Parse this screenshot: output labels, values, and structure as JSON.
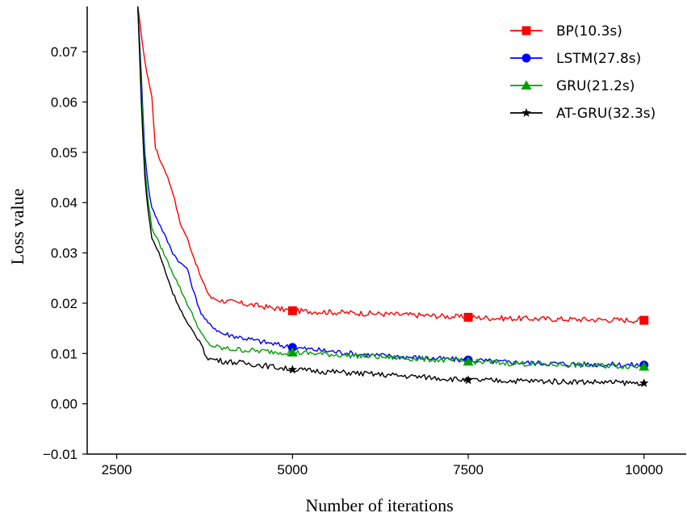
{
  "chart_data": {
    "type": "line",
    "xlabel": "Number of iterations",
    "ylabel": "Loss value",
    "xlim": [
      2080,
      10600
    ],
    "ylim": [
      -0.01,
      0.079
    ],
    "x_ticks": [
      2500,
      5000,
      7500,
      10000
    ],
    "x_tick_labels": [
      "2500",
      "5000",
      "7500",
      "10000"
    ],
    "y_ticks": [
      -0.01,
      0.0,
      0.01,
      0.02,
      0.03,
      0.04,
      0.05,
      0.06,
      0.07
    ],
    "y_tick_labels": [
      "−0.01",
      "0.00",
      "0.01",
      "0.02",
      "0.03",
      "0.04",
      "0.05",
      "0.06",
      "0.07"
    ],
    "grid": false,
    "legend_position": "top-right",
    "series": [
      {
        "name": "BP(10.3s)",
        "color": "#ff0000",
        "marker": "square",
        "x": [
          2800,
          2900,
          3000,
          3050,
          3100,
          3200,
          3300,
          3400,
          3500,
          3600,
          3700,
          3800,
          3850,
          4000,
          4500,
          5000,
          6000,
          7000,
          7500,
          8000,
          9000,
          10000
        ],
        "y": [
          0.079,
          0.068,
          0.061,
          0.051,
          0.049,
          0.046,
          0.042,
          0.036,
          0.033,
          0.029,
          0.025,
          0.022,
          0.021,
          0.0205,
          0.0195,
          0.0185,
          0.018,
          0.0175,
          0.0172,
          0.017,
          0.0168,
          0.0166
        ],
        "marker_x": [
          5000,
          7500,
          10000
        ],
        "marker_y": [
          0.0185,
          0.0172,
          0.0166
        ]
      },
      {
        "name": "LSTM(27.8s)",
        "color": "#0000ff",
        "marker": "circle",
        "x": [
          2800,
          2850,
          2900,
          2950,
          3000,
          3100,
          3200,
          3300,
          3400,
          3500,
          3600,
          3700,
          3800,
          4000,
          4500,
          5000,
          6000,
          7000,
          7500,
          8000,
          9000,
          10000
        ],
        "y": [
          0.079,
          0.065,
          0.05,
          0.043,
          0.039,
          0.036,
          0.033,
          0.03,
          0.028,
          0.027,
          0.022,
          0.018,
          0.016,
          0.014,
          0.0125,
          0.0112,
          0.0098,
          0.009,
          0.0087,
          0.0083,
          0.0079,
          0.0077
        ],
        "marker_x": [
          5000,
          7500,
          10000
        ],
        "marker_y": [
          0.0112,
          0.0087,
          0.0077
        ]
      },
      {
        "name": "GRU(21.2s)",
        "color": "#00a000",
        "marker": "triangle",
        "x": [
          2800,
          2850,
          2900,
          2950,
          3000,
          3100,
          3200,
          3300,
          3400,
          3500,
          3600,
          3700,
          3800,
          3850,
          4000,
          4500,
          5000,
          6000,
          7000,
          7500,
          8000,
          9000,
          10000
        ],
        "y": [
          0.079,
          0.063,
          0.047,
          0.04,
          0.035,
          0.032,
          0.029,
          0.026,
          0.023,
          0.02,
          0.017,
          0.014,
          0.012,
          0.0115,
          0.011,
          0.0105,
          0.0102,
          0.0095,
          0.0088,
          0.0084,
          0.0081,
          0.0077,
          0.0074
        ],
        "marker_x": [
          5000,
          7500,
          10000
        ],
        "marker_y": [
          0.0102,
          0.0084,
          0.0074
        ]
      },
      {
        "name": "AT-GRU(32.3s)",
        "color": "#000000",
        "marker": "star",
        "x": [
          2800,
          2850,
          2900,
          2950,
          3000,
          3100,
          3200,
          3300,
          3400,
          3500,
          3600,
          3700,
          3750,
          3800,
          3900,
          4000,
          4500,
          5000,
          6000,
          7000,
          7500,
          8000,
          9000,
          10000
        ],
        "y": [
          0.079,
          0.06,
          0.045,
          0.038,
          0.033,
          0.03,
          0.026,
          0.022,
          0.019,
          0.016,
          0.014,
          0.012,
          0.01,
          0.009,
          0.0088,
          0.0085,
          0.0078,
          0.0068,
          0.006,
          0.0052,
          0.0047,
          0.0046,
          0.0044,
          0.0041
        ],
        "marker_x": [
          5000,
          7500,
          10000
        ],
        "marker_y": [
          0.0068,
          0.0047,
          0.0041
        ]
      }
    ]
  }
}
